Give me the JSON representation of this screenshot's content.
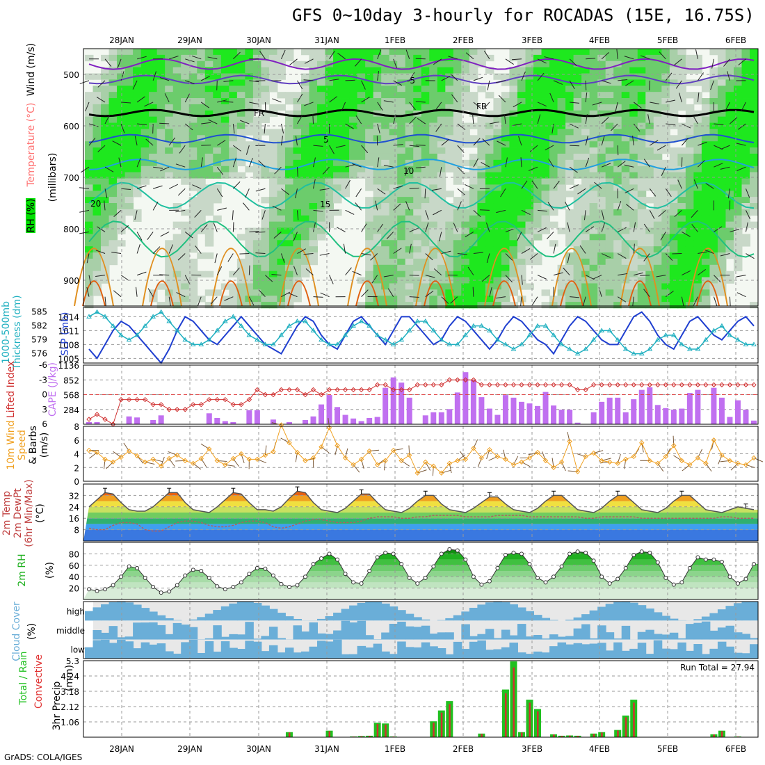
{
  "title": "GFS 0~10day 3-hourly for ROCADAS (15E, 16.75S)",
  "credit": "GrADS: COLA/IGES",
  "dates": [
    "28JAN",
    "29JAN",
    "30JAN",
    "31JAN",
    "1FEB",
    "2FEB",
    "3FEB",
    "4FEB",
    "5FEB",
    "6FEB"
  ],
  "colors": {
    "rh_green": "#00e000",
    "slp": "#1f3fd0",
    "thick": "#20b0c0",
    "cape": "#c070f0",
    "li": "#d03030",
    "wind": "#f0a020",
    "rain": "#d03030",
    "precip": "#20c020",
    "cloud": "#6aaed8"
  },
  "chart_data": [
    {
      "type": "heatmap",
      "name": "upper-air",
      "ylabel": "(millibars)",
      "label_parts": [
        "RH (%)",
        "Temperature (°C)",
        "Wind (m/s)"
      ],
      "ylim": [
        450,
        950
      ],
      "yticks": [
        500,
        600,
        700,
        800,
        900
      ],
      "isotherm_labels": [
        "-5",
        "5",
        "10",
        "15",
        "20",
        "FR"
      ]
    },
    {
      "type": "line",
      "name": "slp-thickness",
      "ylabel_left": "1000-500mb Thickness (dm)",
      "ylabel_right": "SLP (mb)",
      "left_ticks": [
        576,
        579,
        582,
        585
      ],
      "right_ticks": [
        1005,
        1008,
        1011,
        1014
      ],
      "series": [
        {
          "name": "SLP",
          "values": [
            1007,
            1005,
            1008,
            1011,
            1013,
            1012,
            1010,
            1008,
            1006,
            1004,
            1007,
            1011,
            1014,
            1013,
            1011,
            1009,
            1008,
            1010,
            1012,
            1014,
            1012,
            1010,
            1008,
            1007,
            1006,
            1009,
            1012,
            1014,
            1013,
            1010,
            1008,
            1007,
            1010,
            1013,
            1014,
            1012,
            1010,
            1008,
            1011,
            1014,
            1014,
            1012,
            1010,
            1008,
            1009,
            1012,
            1014,
            1013,
            1011,
            1009,
            1007,
            1009,
            1012,
            1014,
            1013,
            1011,
            1009,
            1008,
            1006,
            1009,
            1012,
            1014,
            1013,
            1011,
            1009,
            1008,
            1008,
            1011,
            1014,
            1015,
            1013,
            1010,
            1008,
            1007,
            1010,
            1013,
            1014,
            1012,
            1010,
            1009,
            1011,
            1013,
            1014,
            1012
          ]
        },
        {
          "name": "Thickness",
          "values": [
            584,
            585,
            584,
            582,
            580,
            579,
            580,
            582,
            584,
            585,
            583,
            581,
            579,
            578,
            578,
            579,
            581,
            583,
            584,
            582,
            580,
            579,
            578,
            578,
            580,
            582,
            583,
            583,
            581,
            579,
            578,
            578,
            580,
            582,
            583,
            582,
            580,
            579,
            578,
            579,
            581,
            583,
            583,
            581,
            579,
            578,
            578,
            580,
            582,
            582,
            581,
            579,
            578,
            577,
            578,
            580,
            582,
            582,
            580,
            578,
            577,
            576,
            577,
            579,
            581,
            581,
            579,
            577,
            576,
            576,
            577,
            579,
            580,
            580,
            578,
            577,
            577,
            579,
            581,
            582,
            580,
            579,
            578,
            578
          ]
        }
      ]
    },
    {
      "type": "bar",
      "name": "cape-li",
      "ylabel_left": "Lifted Index",
      "ylabel_right": "CAPE (J/kg)",
      "left_ticks": [
        "-6",
        "-3",
        "0",
        "3",
        "6"
      ],
      "right_ticks": [
        "284",
        "568",
        "852",
        "1136"
      ],
      "series": [
        {
          "name": "CAPE",
          "values": [
            40,
            40,
            0,
            0,
            0,
            150,
            130,
            0,
            80,
            170,
            0,
            0,
            0,
            0,
            0,
            210,
            120,
            60,
            40,
            0,
            270,
            270,
            0,
            90,
            0,
            40,
            0,
            80,
            150,
            380,
            560,
            330,
            180,
            110,
            60,
            120,
            140,
            700,
            900,
            800,
            510,
            0,
            170,
            230,
            230,
            290,
            610,
            1000,
            850,
            520,
            300,
            180,
            560,
            510,
            430,
            400,
            350,
            620,
            360,
            280,
            280,
            30,
            0,
            230,
            430,
            510,
            510,
            230,
            480,
            660,
            710,
            370,
            310,
            280,
            300,
            600,
            660,
            0,
            700,
            510,
            140,
            460,
            280,
            70
          ]
        },
        {
          "name": "Lifted Index",
          "values": [
            5,
            4,
            5,
            6,
            1,
            1,
            1,
            1,
            2,
            2,
            3,
            3,
            3,
            2,
            2,
            1,
            1,
            1,
            2,
            2,
            1,
            -1,
            0,
            0,
            -1,
            -1,
            -1,
            0,
            -1,
            0,
            -1,
            -1,
            -1,
            -1,
            -1,
            -1,
            -2,
            -2,
            -1,
            -1,
            -1,
            -2,
            -2,
            -2,
            -2,
            -3,
            -3,
            -3,
            -3,
            -2,
            -2,
            -2,
            -2,
            -2,
            -2,
            -2,
            -2,
            -2,
            -2,
            -2,
            -2,
            -1,
            -1,
            -2,
            -2,
            -2,
            -2,
            -2,
            -2,
            -2,
            -2,
            -2,
            -2,
            -2,
            -2,
            -2,
            -2,
            -2,
            -2,
            -2,
            -2,
            -2,
            -2,
            -2
          ]
        }
      ]
    },
    {
      "type": "line",
      "name": "wind10m",
      "ylabel": "10m Wind Speed & Barbs (m/s)",
      "label_parts": [
        "10m Wind",
        "Speed",
        "& Barbs",
        "(m/s)"
      ],
      "ticks": [
        2,
        4,
        6,
        8
      ],
      "ylim": [
        0,
        8
      ],
      "values": [
        4.5,
        4.2,
        3.2,
        2.8,
        3.5,
        4.4,
        3.7,
        2.8,
        3.2,
        2.2,
        3.3,
        3.8,
        3.0,
        2.6,
        3.3,
        4.7,
        3.0,
        2.4,
        3.3,
        4.0,
        3.2,
        3.2,
        3.8,
        4.3,
        8.2,
        5.6,
        4.2,
        3.0,
        3.4,
        5.0,
        7.8,
        5.2,
        3.4,
        2.4,
        3.2,
        4.4,
        2.4,
        3.0,
        4.5,
        3.0,
        3.8,
        1.2,
        2.8,
        2.2,
        1.2,
        2.6,
        3.0,
        3.2,
        4.8,
        3.4,
        4.6,
        3.6,
        3.2,
        2.4,
        2.8,
        3.4,
        4.2,
        3.0,
        2.0,
        2.8,
        5.8,
        1.4,
        3.6,
        4.1,
        3.0,
        2.8,
        2.6,
        3.2,
        3.6,
        5.6,
        3.0,
        2.6,
        3.6,
        5.2,
        3.0,
        2.4,
        3.4,
        2.6,
        6.0,
        3.8,
        3.0,
        2.6,
        2.4,
        3.4
      ]
    },
    {
      "type": "area",
      "name": "temp2m",
      "ylabel": "2m Temp 2m DewPt (6hr Min/Max) (°C)",
      "label_parts": [
        "2m Temp",
        "2m DewPt",
        "(6hr Min/Max)",
        "(°C)"
      ],
      "ticks": [
        8,
        16,
        24,
        32
      ],
      "ylim": [
        0,
        40
      ],
      "temp": [
        24,
        29,
        34,
        33,
        27,
        22,
        21,
        21,
        24,
        29,
        34,
        34,
        27,
        22,
        21,
        20,
        24,
        29,
        34,
        33,
        27,
        22,
        22,
        21,
        24,
        30,
        35,
        34,
        27,
        22,
        21,
        20,
        23,
        28,
        33,
        33,
        27,
        22,
        21,
        20,
        23,
        28,
        32,
        32,
        26,
        22,
        21,
        20,
        23,
        27,
        31,
        31,
        26,
        22,
        21,
        20,
        23,
        28,
        32,
        32,
        27,
        22,
        21,
        20,
        23,
        28,
        32,
        32,
        27,
        22,
        21,
        20,
        23,
        28,
        32,
        32,
        27,
        22,
        21,
        20,
        22,
        24,
        23,
        22
      ],
      "dewpt": [
        9,
        8,
        8,
        11,
        13,
        13,
        12,
        8,
        7,
        7,
        10,
        13,
        14,
        14,
        13,
        11,
        10,
        10,
        11,
        13,
        14,
        14,
        13,
        10,
        9,
        10,
        12,
        14,
        15,
        15,
        14,
        13,
        13,
        13,
        14,
        16,
        17,
        17,
        17,
        16,
        16,
        17,
        17,
        18,
        18,
        18,
        18,
        17,
        17,
        17,
        17,
        18,
        18,
        18,
        18,
        17,
        17,
        17,
        17,
        17,
        17,
        17,
        16,
        16,
        17,
        17,
        17,
        17,
        17,
        16,
        16,
        16,
        16,
        16,
        16,
        16,
        16,
        16,
        16,
        17,
        17,
        16,
        16,
        16
      ]
    },
    {
      "type": "area",
      "name": "rh2m",
      "ylabel": "2m RH (%)",
      "label_parts": [
        "2m RH",
        "(%)"
      ],
      "ticks": [
        20,
        40,
        60,
        80
      ],
      "ylim": [
        0,
        100
      ],
      "values": [
        18,
        15,
        18,
        25,
        40,
        58,
        55,
        38,
        22,
        12,
        14,
        25,
        42,
        52,
        50,
        38,
        23,
        18,
        22,
        30,
        45,
        55,
        54,
        42,
        27,
        22,
        25,
        40,
        62,
        72,
        80,
        70,
        45,
        30,
        28,
        50,
        74,
        82,
        80,
        62,
        38,
        28,
        38,
        58,
        80,
        88,
        86,
        70,
        40,
        26,
        32,
        55,
        78,
        82,
        80,
        62,
        38,
        30,
        40,
        58,
        80,
        84,
        82,
        68,
        40,
        28,
        36,
        55,
        78,
        84,
        82,
        65,
        38,
        26,
        30,
        55,
        74,
        70,
        70,
        66,
        40,
        28,
        36,
        62
      ]
    },
    {
      "type": "bar",
      "name": "cloud",
      "ylabel": "Cloud Cover (%)",
      "label_parts": [
        "Cloud Cover",
        "(%)"
      ],
      "categories": [
        "high",
        "middle",
        "low"
      ]
    },
    {
      "type": "bar",
      "name": "precip",
      "ylabel": "3hr Precip (mm)",
      "label_parts": [
        "Total / Rain",
        "Convective",
        "3hr Precip",
        "(mm)"
      ],
      "ticks": [
        "1.06",
        "2.12",
        "3.18",
        "4.24",
        "5.3"
      ],
      "ylim": [
        0,
        5.3
      ],
      "run_total": "Run Total = 27.94",
      "values": [
        0,
        0,
        0,
        0,
        0,
        0,
        0,
        0,
        0,
        0,
        0,
        0,
        0,
        0,
        0,
        0,
        0,
        0,
        0,
        0,
        0,
        0,
        0,
        0,
        0,
        0.35,
        0,
        0,
        0,
        0,
        0.45,
        0,
        0,
        0.05,
        0.08,
        0.1,
        1.0,
        0.95,
        0.05,
        0,
        0,
        0,
        0,
        1.1,
        1.85,
        2.5,
        0,
        0,
        0,
        0.25,
        0,
        0,
        3.3,
        5.25,
        0.35,
        2.6,
        1.95,
        0,
        0.2,
        0.1,
        0.12,
        0.1,
        0,
        0.25,
        0.35,
        0,
        0.5,
        1.5,
        2.6,
        0,
        0,
        0,
        0,
        0,
        0,
        0,
        0,
        0,
        0.2,
        0.45,
        0,
        0.05,
        0,
        0
      ]
    }
  ]
}
